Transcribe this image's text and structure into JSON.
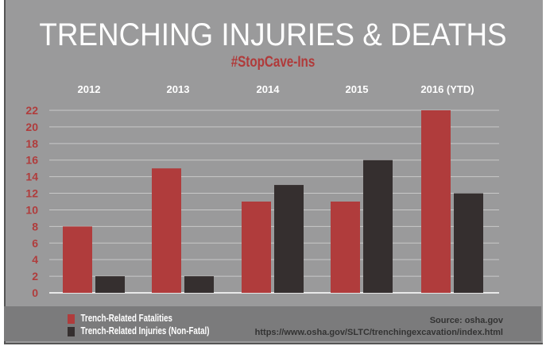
{
  "chart_data": {
    "type": "bar",
    "title": "TRENCHING INJURIES & DEATHS",
    "subtitle": "#StopCave-Ins",
    "categories": [
      "2012",
      "2013",
      "2014",
      "2015",
      "2016 (YTD)"
    ],
    "series": [
      {
        "name": "Trench-Related Fatalities",
        "color": "#b03c3c",
        "values": [
          8,
          15,
          11,
          11,
          22
        ]
      },
      {
        "name": "Trench-Related Injuries (Non-Fatal)",
        "color": "#352f2f",
        "values": [
          2,
          2,
          13,
          16,
          12
        ]
      }
    ],
    "yticks": [
      0,
      2,
      4,
      6,
      8,
      10,
      12,
      14,
      16,
      18,
      20,
      22
    ],
    "ylim": [
      0,
      22
    ],
    "grid": true,
    "legend": "bottom-left",
    "source": "Source: osha.gov",
    "url": "https://www.osha.gov/SLTC/trenchingexcavation/index.html"
  }
}
